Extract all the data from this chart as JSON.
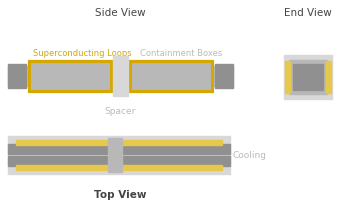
{
  "dark_gray": "#909090",
  "light_gray": "#b8b8b8",
  "lighter_gray": "#d8d8d8",
  "gold": "#d4a800",
  "gold_light": "#e8c84a",
  "title_color": "#444444",
  "label_color": "#aaaaaa",
  "label_color2": "#bbbbbb",
  "side_view_title": "Side View",
  "end_view_title": "End View",
  "top_view_title": "Top View",
  "spacer_label": "Spacer",
  "cooling_label": "Cooling",
  "loops_label": "Superconducting Loops",
  "boxes_label": "Containment Boxes",
  "fig_w": 3.48,
  "fig_h": 2.11,
  "dpi": 100
}
